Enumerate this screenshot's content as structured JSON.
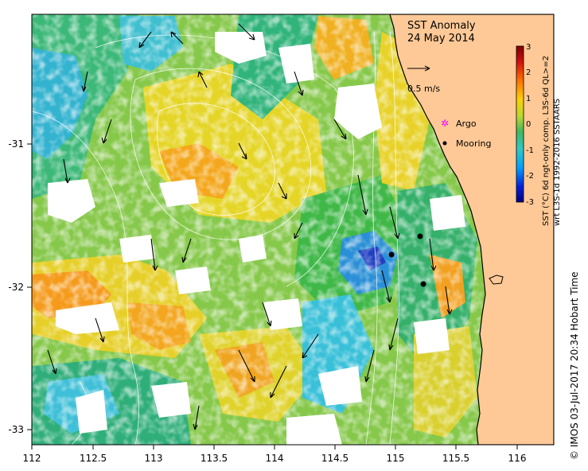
{
  "map": {
    "title": "SST Anomaly",
    "date": "24 May 2014",
    "scale_arrow_label": "0.5 m/s",
    "legend": [
      {
        "label": "Argo",
        "marker": "magenta-star",
        "color": "#ff00ff"
      },
      {
        "label": "Mooring",
        "marker": "black-dot",
        "color": "#000000"
      }
    ],
    "colorbar": {
      "title": "SST (°C) 6d ngt-only comp. L3S-6d QL>=2",
      "subtitle": "wrt L3S-1d 1992-2016 SSTAARS",
      "ticks": [
        "3",
        "2",
        "1",
        "0",
        "-1",
        "-2",
        "-3"
      ],
      "range": [
        -3,
        3
      ],
      "colors": [
        "#00007f",
        "#0000ff",
        "#0080ff",
        "#00c0ff",
        "#00e0c0",
        "#20c060",
        "#60c040",
        "#a0d030",
        "#e0e000",
        "#ffc000",
        "#ff8000",
        "#ff3000",
        "#c00000",
        "#800000"
      ]
    },
    "x_axis": {
      "ticks": [
        "112",
        "112.5",
        "113",
        "113.5",
        "114",
        "114.5",
        "115",
        "115.5",
        "116"
      ],
      "range": [
        112,
        116.3
      ]
    },
    "y_axis": {
      "ticks": [
        "-31",
        "-32",
        "-33"
      ],
      "range": [
        -33.1,
        -30.1
      ]
    },
    "credit": "©  IMOS 03-Jul-2017 20:34 Hobart Time",
    "colors": {
      "land": "#fec996",
      "no_data": "#ffffff",
      "coast": "#000000",
      "contour": "#ffffff"
    },
    "moorings": [
      {
        "lon": 115.22,
        "lat": -31.65
      },
      {
        "lon": 114.98,
        "lat": -31.77
      },
      {
        "lon": 115.24,
        "lat": -31.98
      }
    ]
  }
}
